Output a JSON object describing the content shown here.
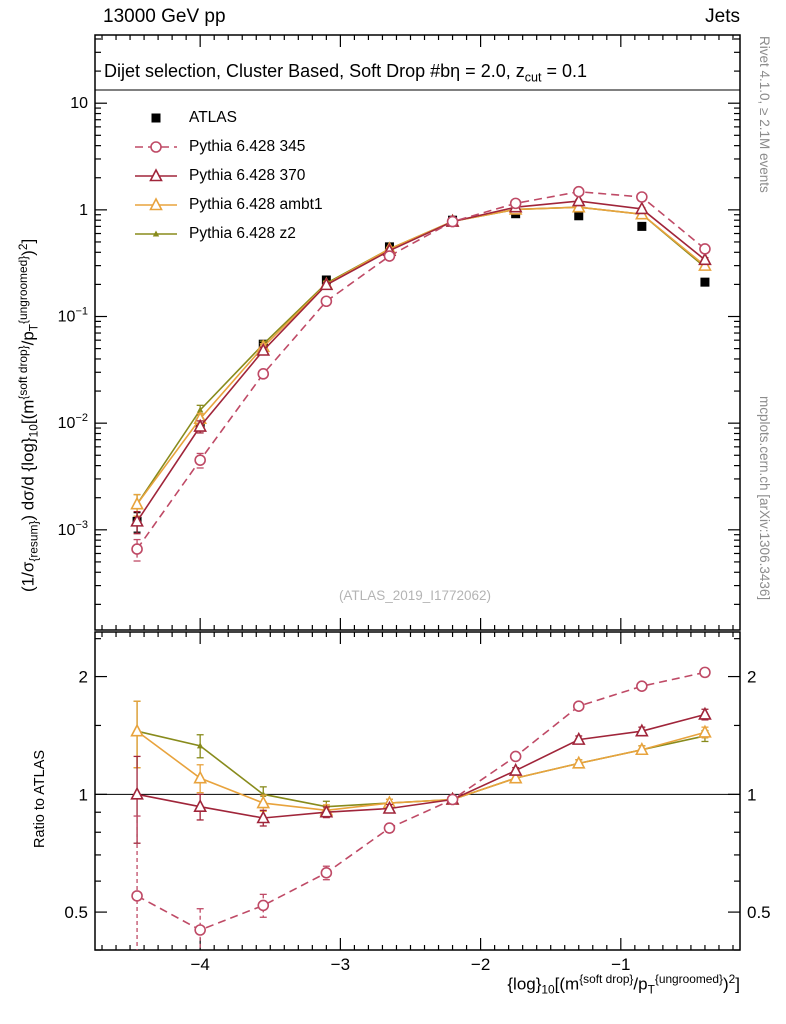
{
  "header": {
    "left": "13000 GeV pp",
    "right": "Jets"
  },
  "panel_title": {
    "text": "Dijet selection, Cluster Based, Soft Drop #bη = 2.0, z_cut = 0.1",
    "segments": [
      {
        "t": "Dijet selection, Cluster Based, Soft Drop #bη = 2.0, z",
        "s": "n"
      },
      {
        "t": "cut",
        "s": "sub"
      },
      {
        "t": " = 0.1",
        "s": "n"
      }
    ]
  },
  "side_notes": {
    "top_right": "Rivet 4.1.0, ≥ 2.1M events",
    "bottom_right": "mcplots.cern.ch [arXiv:1306.3436]"
  },
  "watermark": "(ATLAS_2019_I1772062)",
  "axes_text": {
    "ylabel_main_text": "(1/σ_{resum}) dσ/d {log}_{10}[(m^{soft drop}/p_T^{ungroomed})^2]",
    "ylabel_main_segments": [
      {
        "t": "(1/σ",
        "s": "n"
      },
      {
        "t": "{resum}",
        "s": "sub"
      },
      {
        "t": ") dσ/d {log}",
        "s": "n"
      },
      {
        "t": "10",
        "s": "sub"
      },
      {
        "t": "[(m",
        "s": "n"
      },
      {
        "t": "{soft drop}",
        "s": "sup"
      },
      {
        "t": "/p",
        "s": "n"
      },
      {
        "t": "T",
        "s": "sub"
      },
      {
        "t": "{ungroomed}",
        "s": "sup"
      },
      {
        "t": ")",
        "s": "n"
      },
      {
        "t": "2",
        "s": "sup"
      },
      {
        "t": "]",
        "s": "n"
      }
    ],
    "ylabel_ratio": "Ratio to ATLAS",
    "xlabel_text": "{log}_{10}[(m^{soft drop}/p_T^{ungroomed})^2]",
    "xlabel_segments": [
      {
        "t": "{log}",
        "s": "n"
      },
      {
        "t": "10",
        "s": "sub"
      },
      {
        "t": "[(m",
        "s": "n"
      },
      {
        "t": "{soft drop}",
        "s": "sup"
      },
      {
        "t": "/p",
        "s": "n"
      },
      {
        "t": "T",
        "s": "sub"
      },
      {
        "t": "{ungroomed}",
        "s": "sup"
      },
      {
        "t": ")",
        "s": "n"
      },
      {
        "t": "2",
        "s": "sup"
      },
      {
        "t": "]",
        "s": "n"
      }
    ]
  },
  "chart_data": {
    "type": "line",
    "title": "Dijet selection, Cluster Based, Soft Drop #bη = 2.0, z_cut = 0.1",
    "xlabel": "{log}_{10}[(m^{soft drop}/p_T^{ungroomed})^2]",
    "ylabel": "(1/σ_{resum}) dσ/d {log}_{10}[(m^{soft drop}/p_T^{ungroomed})^2]",
    "legend_position": "top-left",
    "xlim": [
      -4.75,
      -0.15
    ],
    "x": [
      -4.45,
      -4.0,
      -3.55,
      -3.1,
      -2.65,
      -2.2,
      -1.75,
      -1.3,
      -0.85,
      -0.4
    ],
    "xticks": [
      {
        "v": -4,
        "label": "−4"
      },
      {
        "v": -3,
        "label": "−3"
      },
      {
        "v": -2,
        "label": "−2"
      },
      {
        "v": -1,
        "label": "−1"
      }
    ],
    "main": {
      "scale": "log",
      "ylim": [
        0.000115,
        43.6
      ],
      "yticks": [
        {
          "v": 10,
          "base": "10",
          "exp": ""
        },
        {
          "v": 1,
          "base": "1",
          "exp": ""
        },
        {
          "v": 0.1,
          "base": "10",
          "exp": "−1"
        },
        {
          "v": 0.01,
          "base": "10",
          "exp": "−2"
        },
        {
          "v": 0.001,
          "base": "10",
          "exp": "−3"
        }
      ]
    },
    "ratio": {
      "scale": "log",
      "ylim": [
        0.4,
        2.6
      ],
      "ref_line": 1,
      "ylabel": "Ratio to ATLAS",
      "yticks": [
        {
          "v": 2,
          "label": "2"
        },
        {
          "v": 1,
          "label": "1"
        },
        {
          "v": 0.5,
          "label": "0.5"
        }
      ],
      "yminor": [
        0.4,
        0.6,
        0.7,
        0.8,
        0.9,
        1.5,
        2.5
      ]
    },
    "series": [
      {
        "name": "ATLAS",
        "color": "#000000",
        "line": "none",
        "marker": "square",
        "values": [
          0.0012,
          0.01,
          0.055,
          0.22,
          0.45,
          0.8,
          0.92,
          0.88,
          0.7,
          0.21
        ],
        "yerr": [
          0.00025,
          0.0012,
          0.004,
          0.012,
          0.018,
          0.025,
          0.025,
          0.025,
          0.02,
          0.012
        ]
      },
      {
        "name": "Pythia 6.428 345",
        "color": "#bf4a66",
        "line": "dashed",
        "marker": "circle",
        "values": [
          0.00066,
          0.0045,
          0.029,
          0.139,
          0.369,
          0.776,
          1.15,
          1.48,
          1.32,
          0.43
        ],
        "yerr": [
          0.00015,
          0.0007,
          0.002,
          0.008,
          0.012,
          0.018,
          0.022,
          0.028,
          0.025,
          0.015
        ],
        "ratio": [
          0.55,
          0.45,
          0.52,
          0.63,
          0.82,
          0.97,
          1.25,
          1.68,
          1.89,
          2.05
        ],
        "ratio_err": [
          0.33,
          0.06,
          0.035,
          0.025,
          0.02,
          0.018,
          0.02,
          0.03,
          0.035,
          0.05
        ]
      },
      {
        "name": "Pythia 6.428 370",
        "color": "#a0253a",
        "line": "solid",
        "marker": "triangle",
        "values": [
          0.0012,
          0.0093,
          0.048,
          0.198,
          0.414,
          0.776,
          1.06,
          1.21,
          1.02,
          0.34
        ],
        "yerr": [
          0.00028,
          0.0012,
          0.0035,
          0.01,
          0.014,
          0.02,
          0.024,
          0.03,
          0.026,
          0.016
        ],
        "ratio": [
          1.0,
          0.93,
          0.87,
          0.9,
          0.92,
          0.97,
          1.15,
          1.38,
          1.45,
          1.6
        ],
        "ratio_err": [
          0.25,
          0.07,
          0.04,
          0.028,
          0.022,
          0.018,
          0.02,
          0.03,
          0.035,
          0.05
        ]
      },
      {
        "name": "Pythia 6.428 ambt1",
        "color": "#e8a33d",
        "line": "solid",
        "marker": "triangle",
        "values": [
          0.00174,
          0.011,
          0.052,
          0.2,
          0.43,
          0.78,
          1.01,
          1.06,
          0.91,
          0.3
        ],
        "yerr": [
          0.0004,
          0.0013,
          0.0036,
          0.01,
          0.014,
          0.02,
          0.022,
          0.026,
          0.022,
          0.014
        ],
        "ratio": [
          1.45,
          1.1,
          0.95,
          0.91,
          0.95,
          0.97,
          1.1,
          1.2,
          1.3,
          1.44
        ],
        "ratio_err": [
          0.28,
          0.09,
          0.045,
          0.03,
          0.022,
          0.018,
          0.018,
          0.025,
          0.03,
          0.045
        ]
      },
      {
        "name": "Pythia 6.428 z2",
        "color": "#888b1c",
        "line": "solid",
        "marker": "tri-small",
        "values": [
          0.00174,
          0.0133,
          0.055,
          0.205,
          0.43,
          0.78,
          1.01,
          1.06,
          0.91,
          0.29
        ],
        "yerr": [
          0.0004,
          0.0014,
          0.0038,
          0.01,
          0.014,
          0.02,
          0.022,
          0.026,
          0.022,
          0.014
        ],
        "ratio": [
          1.45,
          1.33,
          1.0,
          0.93,
          0.95,
          0.97,
          1.1,
          1.2,
          1.3,
          1.41
        ],
        "ratio_err": [
          0.28,
          0.09,
          0.045,
          0.03,
          0.022,
          0.018,
          0.018,
          0.025,
          0.03,
          0.045
        ]
      }
    ]
  }
}
